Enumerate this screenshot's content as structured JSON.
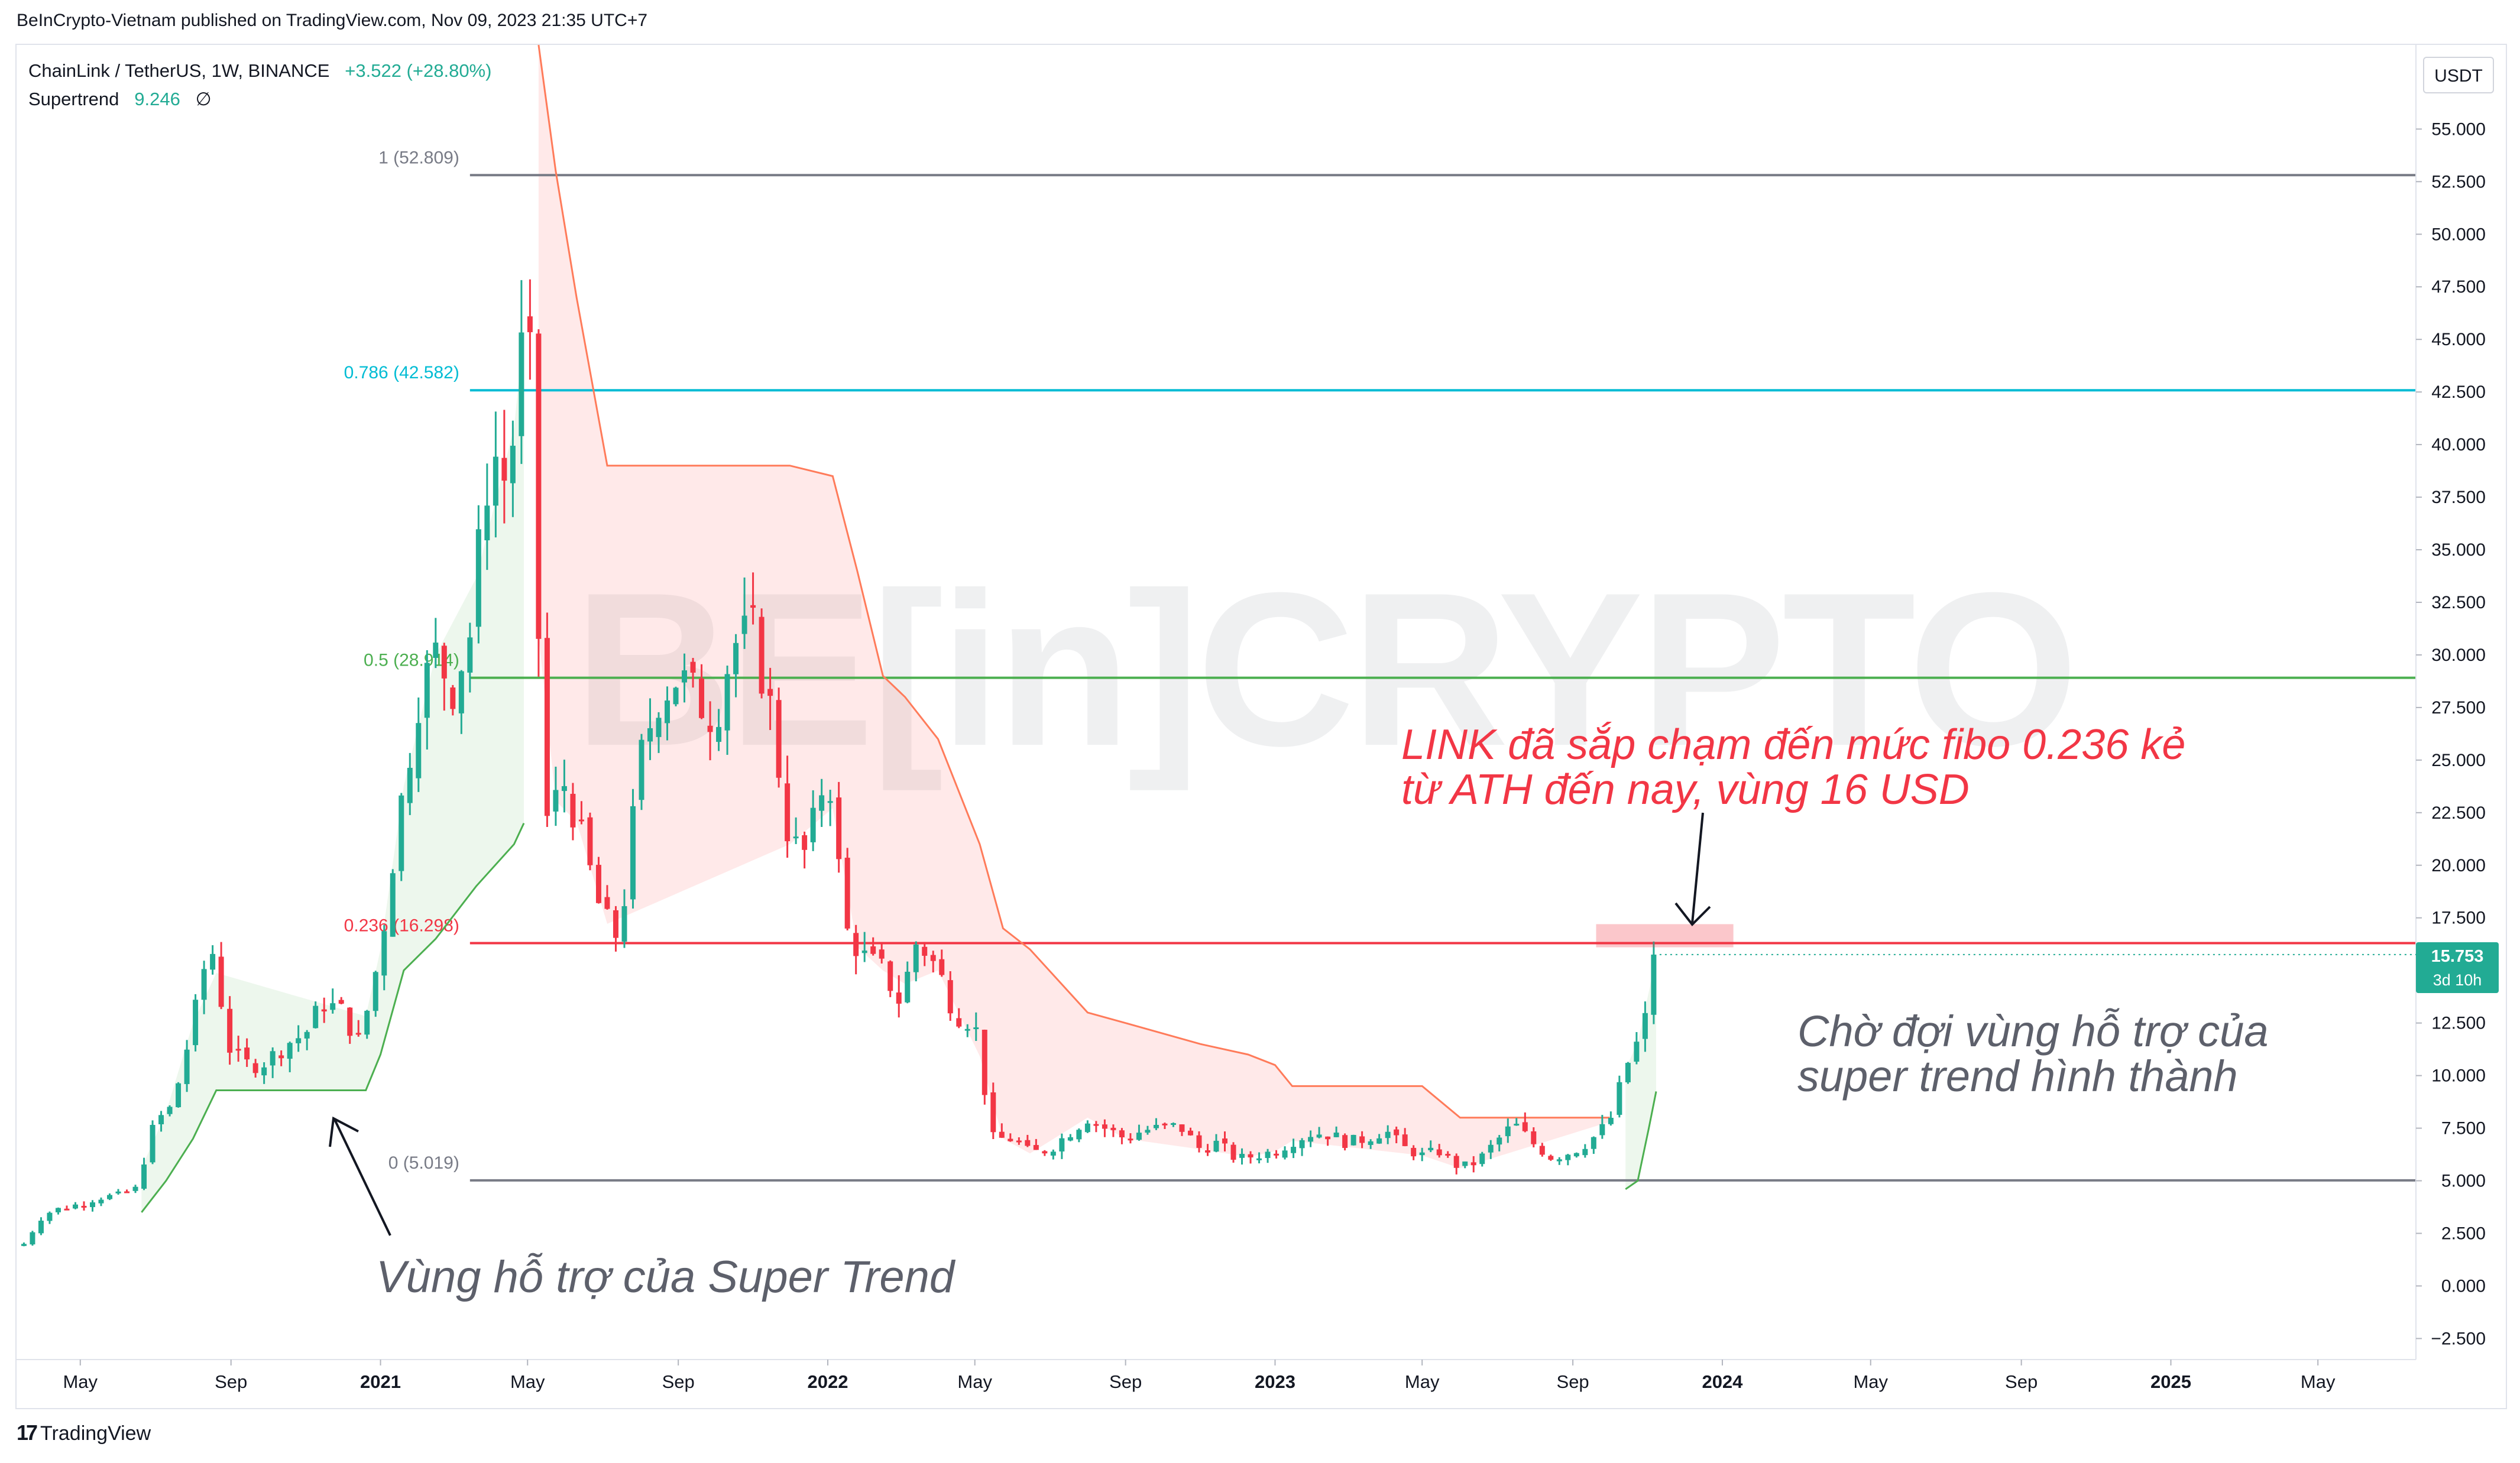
{
  "header": {
    "published": "BeInCrypto-Vietnam published on TradingView.com, Nov 09, 2023 21:35 UTC+7"
  },
  "legend": {
    "symbol": "ChainLink / TetherUS, 1W, BINANCE",
    "change": "+3.522 (+28.80%)",
    "indicator_name": "Supertrend",
    "indicator_value": "9.246",
    "indicator_symbol": "∅"
  },
  "price_scale": {
    "currency": "USDT",
    "last_price": "15.753",
    "countdown": "3d 10h"
  },
  "footer": {
    "brand": "TradingView"
  },
  "watermark": "BE[in]CRYPTO",
  "colors": {
    "up": "#22ab94",
    "down": "#f23645",
    "supertrend_up": "#4caf50",
    "supertrend_down": "#ff7b5a",
    "fill_up": "rgba(76,175,80,0.10)",
    "fill_down": "rgba(255,82,82,0.13)",
    "fib_1": "#787b86",
    "fib_0786": "#00bcd4",
    "fib_05": "#4caf50",
    "fib_0236": "#f23645",
    "fib_0": "#787b86",
    "annotation_red": "#f23645",
    "annotation_gray": "#5d606b"
  },
  "chart_data": {
    "type": "candlestick",
    "title": "ChainLink / TetherUS, 1W, BINANCE",
    "y_axis": {
      "ticks": [
        -2.5,
        0,
        2.5,
        5,
        7.5,
        10,
        12.5,
        15,
        17.5,
        20,
        22.5,
        25,
        27.5,
        30,
        32.5,
        35,
        37.5,
        40,
        42.5,
        45,
        47.5,
        50,
        52.5,
        55
      ],
      "tick_labels": [
        "−2.500",
        "0.000",
        "2.500",
        "5.000",
        "7.500",
        "10.000",
        "12.500",
        "15.000",
        "17.500",
        "20.000",
        "22.500",
        "25.000",
        "27.500",
        "30.000",
        "32.500",
        "35.000",
        "37.500",
        "40.000",
        "42.500",
        "45.000",
        "47.500",
        "50.000",
        "52.500",
        "55.000"
      ],
      "range": [
        -3.5,
        59
      ]
    },
    "x_axis": {
      "ticks": [
        {
          "date": "2020-05-01",
          "label": "May"
        },
        {
          "date": "2020-09-01",
          "label": "Sep"
        },
        {
          "date": "2021-01-01",
          "label": "2021"
        },
        {
          "date": "2021-05-01",
          "label": "May"
        },
        {
          "date": "2021-09-01",
          "label": "Sep"
        },
        {
          "date": "2022-01-01",
          "label": "2022"
        },
        {
          "date": "2022-05-01",
          "label": "May"
        },
        {
          "date": "2022-09-01",
          "label": "Sep"
        },
        {
          "date": "2023-01-01",
          "label": "2023"
        },
        {
          "date": "2023-05-01",
          "label": "May"
        },
        {
          "date": "2023-09-01",
          "label": "Sep"
        },
        {
          "date": "2024-01-01",
          "label": "2024"
        },
        {
          "date": "2024-05-01",
          "label": "May"
        },
        {
          "date": "2024-09-01",
          "label": "Sep"
        },
        {
          "date": "2025-01-01",
          "label": "2025"
        },
        {
          "date": "2025-05-01",
          "label": "May"
        }
      ],
      "range": [
        "2020-03-10",
        "2025-07-20"
      ]
    },
    "fib_levels": [
      {
        "label": "1 (52.809)",
        "value": 52.809,
        "color_key": "fib_1"
      },
      {
        "label": "0.786 (42.582)",
        "value": 42.582,
        "color_key": "fib_0786"
      },
      {
        "label": "0.5 (28.914)",
        "value": 28.914,
        "color_key": "fib_05"
      },
      {
        "label": "0.236 (16.298)",
        "value": 16.298,
        "color_key": "fib_0236"
      },
      {
        "label": "0 (5.019)",
        "value": 5.019,
        "color_key": "fib_0"
      }
    ],
    "fib_start_date": "2021-03-15",
    "series": [
      {
        "name": "ChainLink / TetherUS",
        "type": "candlestick",
        "points": [
          [
            "2020-03-16",
            2.0
          ],
          [
            "2020-04-01",
            3.4
          ],
          [
            "2020-04-15",
            3.7
          ],
          [
            "2020-05-01",
            3.9
          ],
          [
            "2020-05-15",
            4.2
          ],
          [
            "2020-06-01",
            4.3
          ],
          [
            "2020-06-15",
            4.6
          ],
          [
            "2020-07-01",
            7.8
          ],
          [
            "2020-07-15",
            8.5
          ],
          [
            "2020-08-01",
            12.5
          ],
          [
            "2020-08-15",
            16.5
          ],
          [
            "2020-09-01",
            11.0
          ],
          [
            "2020-09-15",
            10.5
          ],
          [
            "2020-10-01",
            10.7
          ],
          [
            "2020-10-15",
            11.5
          ],
          [
            "2020-11-01",
            12.0
          ],
          [
            "2020-11-15",
            13.5
          ],
          [
            "2020-12-01",
            13.0
          ],
          [
            "2020-12-15",
            11.5
          ],
          [
            "2021-01-01",
            16.0
          ],
          [
            "2021-01-15",
            22.0
          ],
          [
            "2021-02-01",
            28.0
          ],
          [
            "2021-02-15",
            30.0
          ],
          [
            "2021-03-01",
            28.5
          ],
          [
            "2021-03-15",
            31.0
          ],
          [
            "2021-04-01",
            40.0
          ],
          [
            "2021-04-15",
            38.0
          ],
          [
            "2021-05-01",
            47.0
          ],
          [
            "2021-05-15",
            22.0
          ],
          [
            "2021-06-01",
            24.0
          ],
          [
            "2021-06-15",
            21.0
          ],
          [
            "2021-07-01",
            17.5
          ],
          [
            "2021-07-15",
            16.5
          ],
          [
            "2021-08-01",
            25.0
          ],
          [
            "2021-08-15",
            28.0
          ],
          [
            "2021-09-01",
            29.0
          ],
          [
            "2021-09-15",
            28.0
          ],
          [
            "2021-10-01",
            27.0
          ],
          [
            "2021-10-15",
            30.5
          ],
          [
            "2021-11-01",
            31.0
          ],
          [
            "2021-11-15",
            27.5
          ],
          [
            "2021-12-01",
            21.0
          ],
          [
            "2021-12-15",
            20.5
          ],
          [
            "2022-01-01",
            25.0
          ],
          [
            "2022-01-15",
            17.0
          ],
          [
            "2022-02-01",
            15.5
          ],
          [
            "2022-02-15",
            15.0
          ],
          [
            "2022-03-01",
            13.5
          ],
          [
            "2022-03-15",
            16.5
          ],
          [
            "2022-04-01",
            15.0
          ],
          [
            "2022-04-15",
            13.0
          ],
          [
            "2022-05-01",
            12.5
          ],
          [
            "2022-05-15",
            7.0
          ],
          [
            "2022-06-01",
            7.0
          ],
          [
            "2022-06-15",
            6.3
          ],
          [
            "2022-07-01",
            6.5
          ],
          [
            "2022-07-15",
            7.2
          ],
          [
            "2022-08-01",
            8.0
          ],
          [
            "2022-08-15",
            7.5
          ],
          [
            "2022-09-01",
            7.0
          ],
          [
            "2022-09-15",
            7.4
          ],
          [
            "2022-10-01",
            7.5
          ],
          [
            "2022-10-15",
            7.6
          ],
          [
            "2022-11-01",
            6.5
          ],
          [
            "2022-11-15",
            6.8
          ],
          [
            "2022-12-01",
            6.0
          ],
          [
            "2022-12-15",
            6.2
          ],
          [
            "2023-01-01",
            6.4
          ],
          [
            "2023-01-15",
            6.9
          ],
          [
            "2023-02-01",
            7.3
          ],
          [
            "2023-02-15",
            7.2
          ],
          [
            "2023-03-01",
            6.8
          ],
          [
            "2023-03-15",
            7.0
          ],
          [
            "2023-04-01",
            7.4
          ],
          [
            "2023-04-15",
            6.6
          ],
          [
            "2023-05-01",
            6.2
          ],
          [
            "2023-05-15",
            6.4
          ],
          [
            "2023-06-01",
            5.6
          ],
          [
            "2023-06-15",
            5.9
          ],
          [
            "2023-07-01",
            6.9
          ],
          [
            "2023-07-15",
            7.7
          ],
          [
            "2023-08-01",
            6.7
          ],
          [
            "2023-08-15",
            6.1
          ],
          [
            "2023-09-01",
            6.4
          ],
          [
            "2023-09-15",
            6.9
          ],
          [
            "2023-10-01",
            7.8
          ],
          [
            "2023-10-15",
            10.5
          ],
          [
            "2023-10-29",
            12.2
          ],
          [
            "2023-11-06",
            15.753
          ]
        ]
      },
      {
        "name": "Supertrend",
        "type": "line",
        "segments": [
          {
            "trend": "up",
            "points": [
              [
                "2020-06-20",
                3.5
              ],
              [
                "2020-07-10",
                5.0
              ],
              [
                "2020-08-01",
                7.0
              ],
              [
                "2020-08-20",
                9.3
              ],
              [
                "2020-12-20",
                9.3
              ],
              [
                "2021-01-01",
                11.0
              ],
              [
                "2021-01-20",
                15.0
              ],
              [
                "2021-02-15",
                16.5
              ],
              [
                "2021-03-20",
                19.0
              ],
              [
                "2021-04-20",
                21.0
              ],
              [
                "2021-04-28",
                22.0
              ]
            ]
          },
          {
            "trend": "down",
            "points": [
              [
                "2021-05-10",
                59.0
              ],
              [
                "2021-05-24",
                53.0
              ],
              [
                "2021-06-10",
                47.0
              ],
              [
                "2021-07-05",
                39.0
              ],
              [
                "2021-12-01",
                39.0
              ],
              [
                "2022-01-05",
                38.5
              ],
              [
                "2022-01-25",
                34.0
              ],
              [
                "2022-02-15",
                29.0
              ],
              [
                "2022-03-05",
                28.0
              ],
              [
                "2022-04-01",
                26.0
              ],
              [
                "2022-05-05",
                21.0
              ],
              [
                "2022-05-24",
                17.0
              ],
              [
                "2022-06-15",
                16.0
              ],
              [
                "2022-08-01",
                13.0
              ],
              [
                "2022-09-01",
                12.5
              ],
              [
                "2022-11-01",
                11.5
              ],
              [
                "2022-12-10",
                11.0
              ],
              [
                "2023-01-01",
                10.5
              ],
              [
                "2023-01-15",
                9.5
              ],
              [
                "2023-05-01",
                9.5
              ],
              [
                "2023-06-01",
                8.0
              ],
              [
                "2023-10-01",
                8.0
              ]
            ]
          },
          {
            "trend": "up",
            "points": [
              [
                "2023-10-14",
                4.6
              ],
              [
                "2023-10-24",
                5.0
              ],
              [
                "2023-11-02",
                7.5
              ],
              [
                "2023-11-08",
                9.246
              ]
            ]
          }
        ]
      }
    ],
    "annotations": [
      {
        "text_lines": [
          "LINK đã sắp chạm đến mức fibo 0.236 kẻ",
          "từ ATH đến nay, vùng 16 USD"
        ],
        "color_key": "annotation_red",
        "arrow_to": [
          "2023-11-06",
          17.3
        ]
      },
      {
        "text_lines": [
          "Chờ đợi vùng hỗ trợ của",
          "super trend hình thành"
        ],
        "color_key": "annotation_gray"
      },
      {
        "text_lines": [
          "Vùng hỗ trợ của Super Trend"
        ],
        "color_key": "annotation_gray",
        "arrow_to": [
          "2020-11-20",
          8.4
        ]
      }
    ],
    "highlight_zone": {
      "x": [
        "2023-09-20",
        "2024-01-10"
      ],
      "y": [
        16.1,
        17.2
      ]
    },
    "grid": false,
    "legend_position": "top-left"
  }
}
